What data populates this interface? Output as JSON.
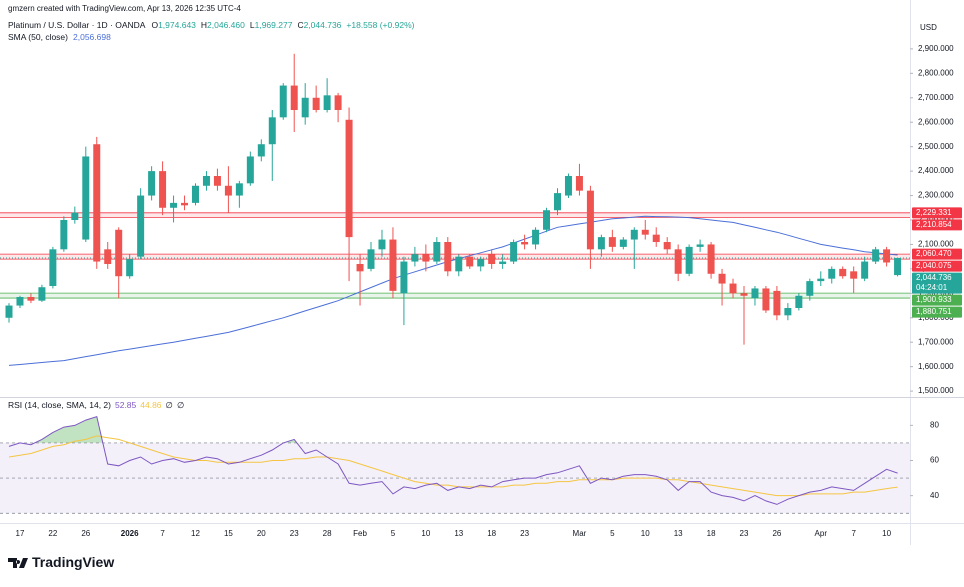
{
  "attribution": "gmzern created with TradingView.com, Apr 13, 2026 12:35 UTC-4",
  "brand": "TradingView",
  "chart_data": [
    {
      "type": "candlestick",
      "title": "Platinum / U.S. Dollar · 1D · OANDA",
      "ohlc_legend": [
        {
          "key": "O",
          "label": "1,974.643"
        },
        {
          "key": "H",
          "label": "2,046.460"
        },
        {
          "key": "L",
          "label": "1,969.277"
        },
        {
          "key": "C",
          "label": "2,044.736"
        }
      ],
      "change": "+18.558 (+0.92%)",
      "currency": "USD",
      "categories": [
        null,
        "17",
        null,
        null,
        "22",
        null,
        null,
        "26",
        null,
        null,
        null,
        "2026",
        null,
        null,
        "7",
        null,
        null,
        "12",
        null,
        null,
        "15",
        null,
        null,
        "20",
        null,
        null,
        "23",
        null,
        null,
        "28",
        null,
        null,
        "Feb",
        null,
        null,
        "5",
        null,
        null,
        "10",
        null,
        null,
        "13",
        null,
        null,
        "18",
        null,
        null,
        "23",
        null,
        null,
        null,
        null,
        "Mar",
        null,
        null,
        "5",
        null,
        null,
        "10",
        null,
        null,
        "13",
        null,
        null,
        "18",
        null,
        null,
        "23",
        null,
        null,
        "26",
        null,
        null,
        null,
        "Apr",
        null,
        null,
        "7",
        null,
        null,
        "10",
        null
      ],
      "open": [
        1800,
        1850,
        1885,
        1870,
        1930,
        2080,
        2200,
        2120,
        2510,
        2080,
        2160,
        1970,
        2050,
        2300,
        2400,
        2250,
        2270,
        2270,
        2340,
        2380,
        2340,
        2300,
        2350,
        2460,
        2510,
        2620,
        2750,
        2620,
        2700,
        2650,
        2710,
        2610,
        2020,
        2000,
        2080,
        2120,
        1900,
        2030,
        2060,
        2030,
        2110,
        1990,
        2050,
        2010,
        2060,
        2020,
        2030,
        2110,
        2100,
        2160,
        2240,
        2300,
        2380,
        2320,
        2080,
        2130,
        2090,
        2120,
        2160,
        2140,
        2110,
        2080,
        1980,
        2090,
        2100,
        1980,
        1940,
        1900,
        1880,
        1920,
        1910,
        1810,
        1840,
        1890,
        1950,
        1960,
        2000,
        1990,
        1960,
        2030,
        2080,
        1974.643
      ],
      "high": [
        1860,
        1890,
        1900,
        1935,
        2090,
        2215,
        2255,
        2500,
        2540,
        2110,
        2170,
        2060,
        2330,
        2420,
        2440,
        2300,
        2300,
        2350,
        2400,
        2410,
        2420,
        2360,
        2480,
        2530,
        2650,
        2760,
        2880,
        2760,
        2750,
        2780,
        2720,
        2660,
        2060,
        2110,
        2160,
        2170,
        2050,
        2090,
        2100,
        2130,
        2130,
        2060,
        2060,
        2050,
        2080,
        2060,
        2120,
        2140,
        2170,
        2250,
        2330,
        2390,
        2430,
        2340,
        2140,
        2160,
        2130,
        2170,
        2200,
        2170,
        2130,
        2100,
        2100,
        2120,
        2110,
        2000,
        1960,
        1930,
        1930,
        1930,
        1930,
        1860,
        1900,
        1960,
        1990,
        2010,
        2010,
        2010,
        2050,
        2090,
        2090,
        2046.46
      ],
      "low": [
        1780,
        1840,
        1860,
        1865,
        1920,
        2070,
        2185,
        2110,
        2000,
        2000,
        1880,
        1960,
        2040,
        2280,
        2220,
        2190,
        2240,
        2260,
        2320,
        2320,
        2230,
        2250,
        2340,
        2440,
        2360,
        2610,
        2560,
        2590,
        2640,
        2640,
        2600,
        1950,
        1850,
        1990,
        2050,
        1880,
        1770,
        2010,
        1990,
        2020,
        1970,
        1970,
        2000,
        1990,
        2000,
        2000,
        2020,
        2080,
        2080,
        2150,
        2220,
        2290,
        2300,
        2000,
        2050,
        2070,
        2080,
        2000,
        2120,
        2090,
        2060,
        1950,
        1970,
        2070,
        1960,
        1850,
        1880,
        1690,
        1850,
        1820,
        1790,
        1790,
        1830,
        1870,
        1930,
        1940,
        1960,
        1900,
        1950,
        2020,
        2010,
        1969.277
      ],
      "close": [
        1850,
        1885,
        1870,
        1925,
        2080,
        2200,
        2230,
        2460,
        2030,
        2020,
        1970,
        2040,
        2300,
        2400,
        2250,
        2270,
        2260,
        2340,
        2380,
        2340,
        2300,
        2350,
        2460,
        2510,
        2620,
        2750,
        2650,
        2700,
        2650,
        2710,
        2650,
        2130,
        1990,
        2080,
        2120,
        1910,
        2030,
        2060,
        2030,
        2110,
        1990,
        2050,
        2010,
        2040,
        2020,
        2030,
        2110,
        2100,
        2160,
        2240,
        2310,
        2380,
        2320,
        2080,
        2130,
        2090,
        2120,
        2160,
        2140,
        2110,
        2080,
        1980,
        2090,
        2100,
        1980,
        1940,
        1900,
        1890,
        1920,
        1830,
        1810,
        1840,
        1890,
        1950,
        1960,
        2000,
        1970,
        1960,
        2030,
        2080,
        2026.178,
        2044.736
      ],
      "up_color": "#26a69a",
      "down_color": "#ef5350",
      "overlays": [
        {
          "name": "SMA (50, close)",
          "value_label": "2,056.698",
          "color": "#4b6fd8",
          "values": [
            1605,
            1609,
            1613,
            1617,
            1621,
            1625,
            1633,
            1641,
            1649,
            1657,
            1665,
            1672,
            1679,
            1686,
            1693,
            1700,
            1708,
            1716,
            1724,
            1732,
            1740,
            1752,
            1764,
            1776,
            1788,
            1800,
            1814,
            1828,
            1842,
            1856,
            1870,
            1888,
            1906,
            1924,
            1942,
            1960,
            1974,
            1988,
            2002,
            2016,
            2030,
            2042,
            2054,
            2066,
            2078,
            2090,
            2106,
            2122,
            2138,
            2154,
            2170,
            2177,
            2184,
            2191,
            2198,
            2205,
            2208,
            2212,
            2215,
            2214,
            2213,
            2212,
            2210,
            2205,
            2200,
            2195,
            2190,
            2180,
            2170,
            2160,
            2150,
            2138,
            2125,
            2113,
            2100,
            2093,
            2085,
            2078,
            2070,
            2066,
            2061,
            2056.698
          ]
        }
      ],
      "levels": [
        {
          "value": 2229.331,
          "label": "2,229.331",
          "color": "#f23645"
        },
        {
          "value": 2210.854,
          "label": "2,210.854",
          "color": "#f23645"
        },
        {
          "value": 2060.47,
          "label": "2,060.470",
          "color": "#f23645"
        },
        {
          "value": 2040.075,
          "label": "2,040.075",
          "color": "#f23645"
        },
        {
          "value": 1900.933,
          "label": "1,900.933",
          "color": "#4caf50"
        },
        {
          "value": 1880.751,
          "label": "1,880.751",
          "color": "#4caf50"
        }
      ],
      "last_price": {
        "label": "2,044.736",
        "countdown": "04:24:01"
      },
      "ylim": [
        1480,
        3100
      ],
      "yticks": [
        {
          "value": 1500,
          "label": "1,500.000"
        },
        {
          "value": 1600,
          "label": "1,600.000"
        },
        {
          "value": 1700,
          "label": "1,700.000"
        },
        {
          "value": 1800,
          "label": "1,800.000"
        },
        {
          "value": 1900,
          "label": "1,900.000"
        },
        {
          "value": 2000,
          "label": "2,000.000"
        },
        {
          "value": 2100,
          "label": "2,100.000"
        },
        {
          "value": 2200,
          "label": "2,200.000"
        },
        {
          "value": 2300,
          "label": "2,300.000"
        },
        {
          "value": 2400,
          "label": "2,400.000"
        },
        {
          "value": 2500,
          "label": "2,500.000"
        },
        {
          "value": 2600,
          "label": "2,600.000"
        },
        {
          "value": 2700,
          "label": "2,700.000"
        },
        {
          "value": 2800,
          "label": "2,800.000"
        },
        {
          "value": 2900,
          "label": "2,900.000"
        }
      ]
    },
    {
      "type": "line",
      "title": "RSI (14, close, SMA, 14, 2)",
      "series": [
        {
          "value_label": "52.85",
          "color": "#7e57c2",
          "values": [
            68,
            70,
            69,
            72,
            76,
            79,
            80,
            83,
            85,
            58,
            57,
            60,
            62,
            58,
            60,
            61,
            59,
            60,
            62,
            61,
            58,
            59,
            61,
            63,
            66,
            70,
            72,
            64,
            66,
            62,
            58,
            47,
            46,
            47,
            48,
            41,
            45,
            44,
            46,
            47,
            43,
            45,
            44,
            46,
            45,
            48,
            49,
            50,
            50,
            52,
            53,
            55,
            57,
            47,
            50,
            49,
            51,
            52,
            52,
            51,
            49,
            43,
            48,
            48,
            42,
            40,
            39,
            37,
            40,
            37,
            35,
            38,
            40,
            42,
            43,
            45,
            44,
            43,
            47,
            51,
            55,
            52.85
          ]
        },
        {
          "value_label": "44.86",
          "color": "#f5c542",
          "values": [
            62,
            63,
            64,
            66,
            68,
            69,
            71,
            72,
            74,
            73,
            72,
            70,
            68,
            66,
            64,
            62,
            61,
            60,
            60,
            59,
            59,
            59,
            59,
            59,
            60,
            60,
            61,
            61,
            62,
            62,
            61,
            60,
            58,
            56,
            54,
            52,
            50,
            48,
            47,
            46,
            46,
            45,
            45,
            45,
            45,
            45,
            46,
            46,
            47,
            47,
            48,
            48,
            49,
            49,
            49,
            49,
            50,
            50,
            50,
            50,
            49,
            49,
            48,
            47,
            46,
            45,
            44,
            43,
            42,
            41,
            40,
            40,
            40,
            41,
            41,
            41,
            41,
            42,
            42,
            43,
            44,
            44.86
          ]
        }
      ],
      "extra_labels": [
        "∅",
        "∅"
      ],
      "band": [
        30,
        70
      ],
      "guides": [
        70,
        50,
        30
      ],
      "ylim": [
        25,
        95
      ],
      "yticks": [
        40,
        60,
        80
      ]
    }
  ]
}
